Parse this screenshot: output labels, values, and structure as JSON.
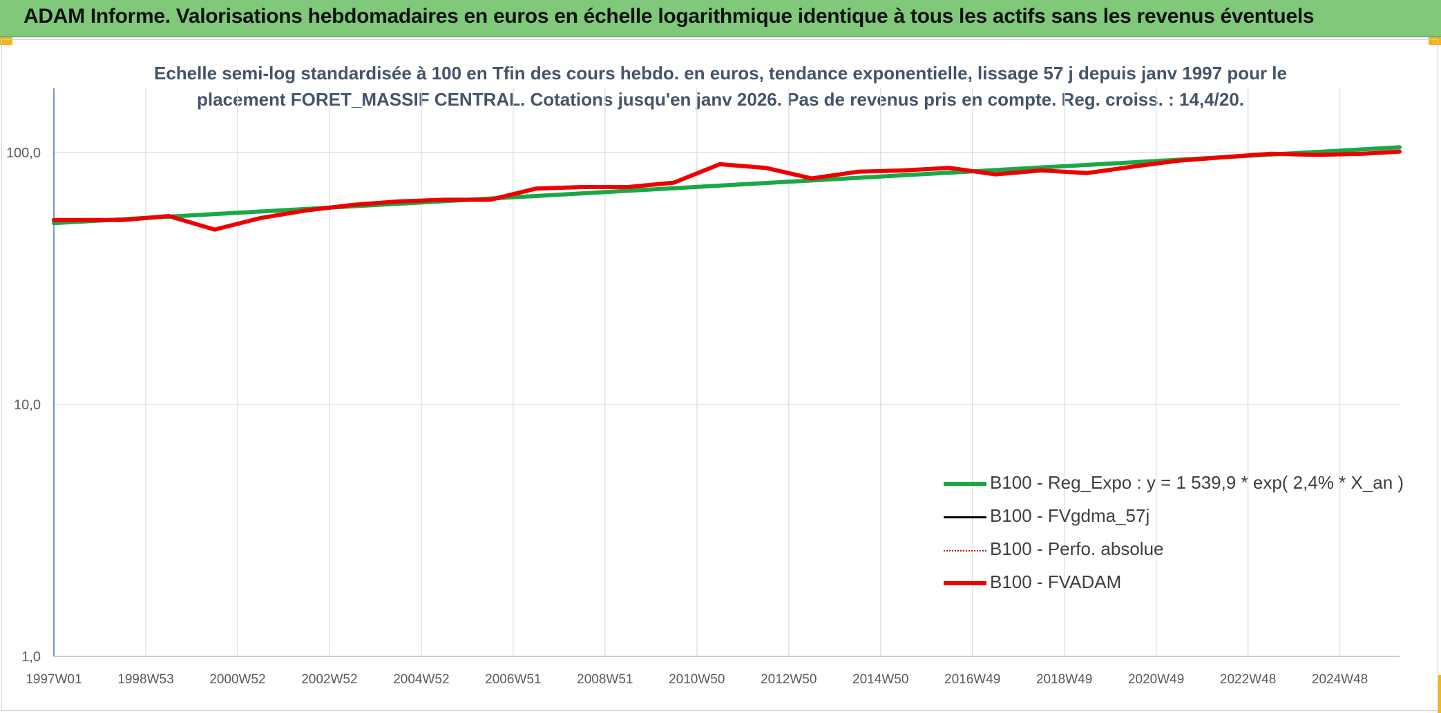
{
  "banner": {
    "title": "ADAM Informe. Valorisations hebdomadaires en euros en échelle logarithmique identique à tous les actifs sans les revenus éventuels"
  },
  "colors": {
    "banner_bg": "#80c97a",
    "title_text": "#44546a",
    "trend_green": "#1aa847",
    "fvadam_red": "#ee0000",
    "perfo_dark_red": "#c00000",
    "fvgdma_black": "#000000",
    "accent_yellow": "#f2b418"
  },
  "chart_data": {
    "type": "line",
    "title_line1": "Echelle semi-log standardisée à 100 en Tfin des cours hebdo. en euros, tendance exponentielle, lissage 57 j depuis janv 1997 pour le",
    "title_line2": "placement FORET_MASSIF CENTRAL. Cotations jusqu'en janv 2026. Pas de revenus pris en compte. Reg. croiss. : 14,4/20.",
    "y_scale": "log",
    "ylim": [
      1,
      180
    ],
    "y_ticks": [
      {
        "value": 1,
        "label": "1,0"
      },
      {
        "value": 10,
        "label": "10,0"
      },
      {
        "value": 100,
        "label": "100,0"
      }
    ],
    "xlim": [
      1997.0,
      2026.3
    ],
    "x_ticks": [
      {
        "pos": 1997.0,
        "label": "1997W01"
      },
      {
        "pos": 1999.0,
        "label": "1998W53"
      },
      {
        "pos": 2001.0,
        "label": "2000W52"
      },
      {
        "pos": 2003.0,
        "label": "2002W52"
      },
      {
        "pos": 2005.0,
        "label": "2004W52"
      },
      {
        "pos": 2007.0,
        "label": "2006W51"
      },
      {
        "pos": 2009.0,
        "label": "2008W51"
      },
      {
        "pos": 2011.0,
        "label": "2010W50"
      },
      {
        "pos": 2013.0,
        "label": "2012W50"
      },
      {
        "pos": 2015.0,
        "label": "2014W50"
      },
      {
        "pos": 2017.0,
        "label": "2016W49"
      },
      {
        "pos": 2019.0,
        "label": "2018W49"
      },
      {
        "pos": 2021.0,
        "label": "2020W49"
      },
      {
        "pos": 2023.0,
        "label": "2022W48"
      },
      {
        "pos": 2025.0,
        "label": "2024W48"
      }
    ],
    "legend_position": "bottom-right",
    "series": [
      {
        "name": "B100 - Reg_Expo : y = 1 539,9 * exp( 2,4% *  X_an )",
        "style": "solid-thick",
        "color": "#1aa847",
        "points": [
          [
            1997.0,
            52.5
          ],
          [
            2026.3,
            105.0
          ]
        ]
      },
      {
        "name": "B100 - FVgdma_57j",
        "style": "solid-thin",
        "color": "#000000",
        "points": []
      },
      {
        "name": "B100 - Perfo. absolue",
        "style": "dotted",
        "color": "#c00000",
        "points": []
      },
      {
        "name": "B100 - FVADAM",
        "style": "solid-thick",
        "color": "#ee0000",
        "points": [
          [
            1997.0,
            54
          ],
          [
            1998.5,
            54
          ],
          [
            1999.5,
            56
          ],
          [
            2000.5,
            49.5
          ],
          [
            2001.5,
            55
          ],
          [
            2002.5,
            59
          ],
          [
            2003.5,
            62
          ],
          [
            2004.5,
            64
          ],
          [
            2005.5,
            65
          ],
          [
            2006.5,
            65
          ],
          [
            2007.5,
            72
          ],
          [
            2008.5,
            73
          ],
          [
            2009.5,
            73
          ],
          [
            2010.5,
            76
          ],
          [
            2011.5,
            90
          ],
          [
            2012.5,
            87
          ],
          [
            2013.5,
            79
          ],
          [
            2014.5,
            84
          ],
          [
            2015.5,
            85
          ],
          [
            2016.5,
            87
          ],
          [
            2017.5,
            82
          ],
          [
            2018.5,
            85
          ],
          [
            2019.5,
            83
          ],
          [
            2020.5,
            88
          ],
          [
            2021.5,
            93
          ],
          [
            2022.5,
            96
          ],
          [
            2023.5,
            99
          ],
          [
            2024.5,
            98
          ],
          [
            2025.5,
            99
          ],
          [
            2026.3,
            101
          ]
        ]
      }
    ]
  }
}
